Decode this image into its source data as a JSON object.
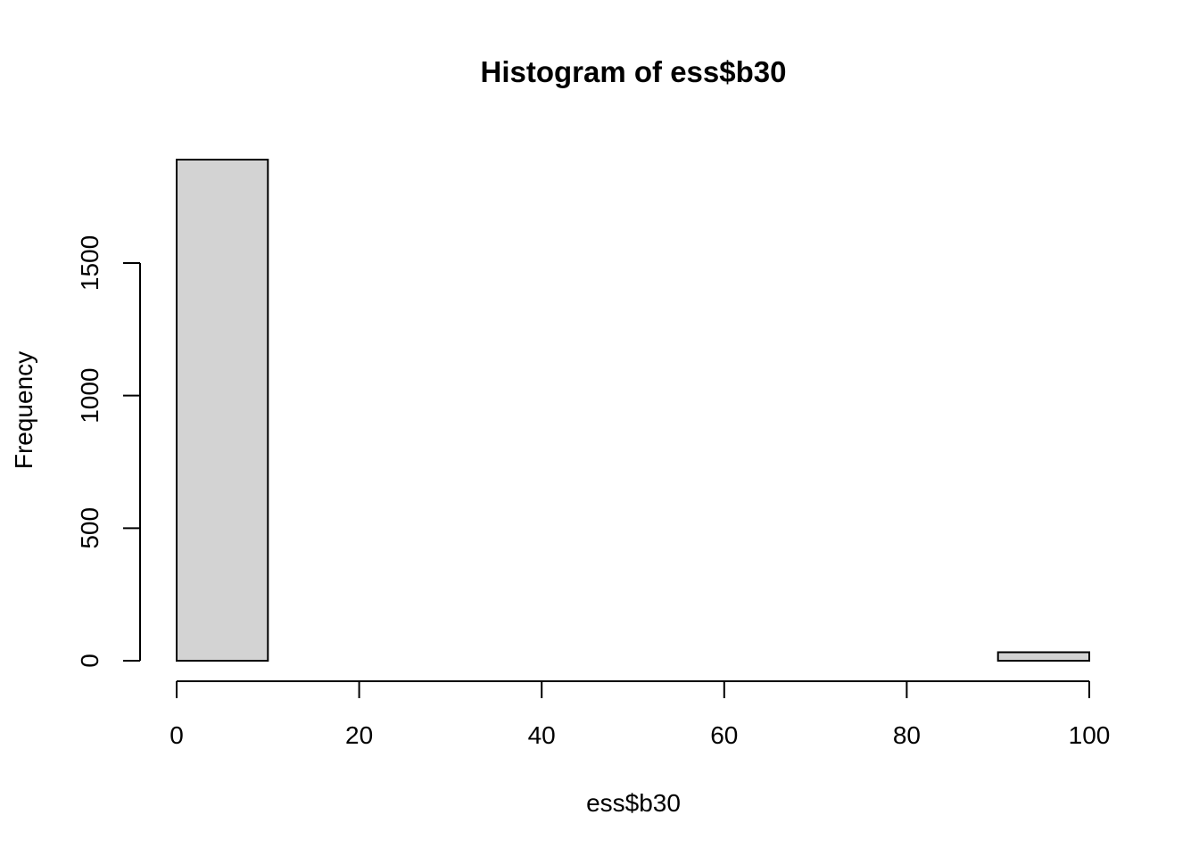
{
  "chart_data": {
    "type": "bar",
    "title": "Histogram of ess$b30",
    "xlabel": "ess$b30",
    "ylabel": "Frequency",
    "bins": [
      {
        "from": 0,
        "to": 10,
        "count": 1890
      },
      {
        "from": 10,
        "to": 20,
        "count": 0
      },
      {
        "from": 20,
        "to": 30,
        "count": 0
      },
      {
        "from": 30,
        "to": 40,
        "count": 0
      },
      {
        "from": 40,
        "to": 50,
        "count": 0
      },
      {
        "from": 50,
        "to": 60,
        "count": 0
      },
      {
        "from": 60,
        "to": 70,
        "count": 0
      },
      {
        "from": 70,
        "to": 80,
        "count": 0
      },
      {
        "from": 80,
        "to": 90,
        "count": 0
      },
      {
        "from": 90,
        "to": 100,
        "count": 32
      }
    ],
    "xticks": [
      "0",
      "20",
      "40",
      "60",
      "80",
      "100"
    ],
    "yticks": [
      "0",
      "500",
      "1000",
      "1500"
    ],
    "xlim": [
      0,
      100
    ],
    "ylim": [
      0,
      1890
    ],
    "bar_color": "#d3d3d3",
    "grid": false,
    "legend": false
  }
}
